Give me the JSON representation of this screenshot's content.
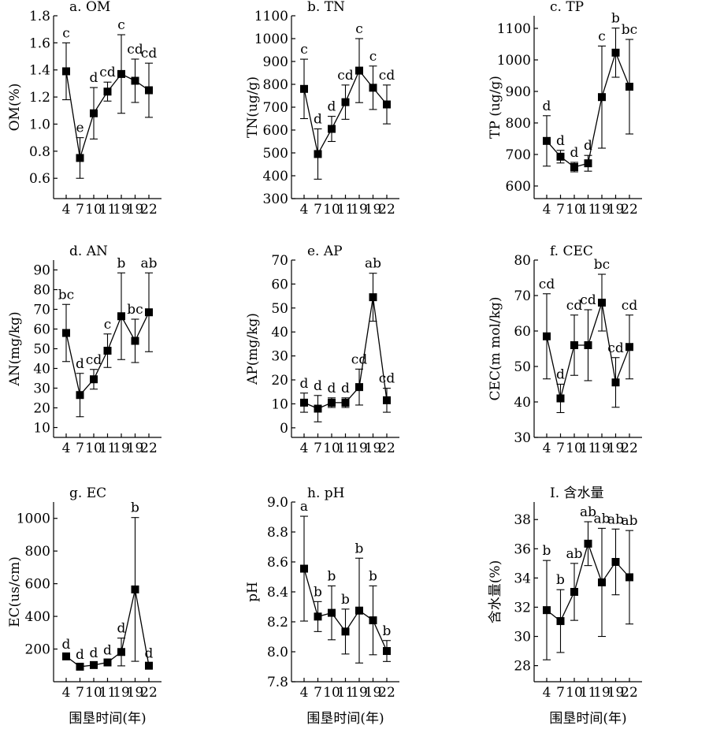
{
  "chart_data": [
    {
      "type": "line",
      "title": "a. OM",
      "ylabel": "OM(%)",
      "xlabel": "",
      "categories": [
        "4",
        "7",
        "10",
        "11",
        "19",
        "19",
        "22"
      ],
      "values": [
        1.39,
        0.75,
        1.08,
        1.24,
        1.37,
        1.32,
        1.25
      ],
      "errors": [
        0.21,
        0.15,
        0.19,
        0.07,
        0.29,
        0.16,
        0.2
      ],
      "sig": [
        "c",
        "e",
        "d",
        "cd",
        "c",
        "cd",
        "cd"
      ],
      "ylim": [
        0.45,
        1.8
      ],
      "yticks": [
        0.6,
        0.8,
        1.0,
        1.2,
        1.4,
        1.6,
        1.8
      ],
      "ytick_labels": [
        "0.6",
        "0.8",
        "1.0",
        "1.2",
        "1.4",
        "1.6",
        "1.8"
      ]
    },
    {
      "type": "line",
      "title": "b. TN",
      "ylabel": "TN(ug/g)",
      "xlabel": "",
      "categories": [
        "4",
        "7",
        "10",
        "11",
        "19",
        "19",
        "22"
      ],
      "values": [
        780,
        495,
        605,
        722,
        860,
        785,
        712
      ],
      "errors": [
        130,
        110,
        55,
        75,
        140,
        95,
        85
      ],
      "sig": [
        "c",
        "d",
        "d",
        "cd",
        "c",
        "c",
        "cd"
      ],
      "ylim": [
        300,
        1100
      ],
      "yticks": [
        300,
        400,
        500,
        600,
        700,
        800,
        900,
        1000,
        1100
      ],
      "ytick_labels": [
        "300",
        "400",
        "500",
        "600",
        "700",
        "800",
        "900",
        "1000",
        "1100"
      ]
    },
    {
      "type": "line",
      "title": "c. TP",
      "ylabel": "TP (ug/g)",
      "xlabel": "",
      "categories": [
        "4",
        "7",
        "10",
        "11",
        "19",
        "19",
        "22"
      ],
      "values": [
        743,
        693,
        660,
        672,
        882,
        1023,
        915
      ],
      "errors": [
        80,
        20,
        15,
        25,
        162,
        78,
        150
      ],
      "sig": [
        "d",
        "d",
        "d",
        "d",
        "c",
        "b",
        "bc"
      ],
      "ylim": [
        560,
        1140
      ],
      "yticks": [
        600,
        700,
        800,
        900,
        1000,
        1100
      ],
      "ytick_labels": [
        "600",
        "700",
        "800",
        "900",
        "1000",
        "1100"
      ]
    },
    {
      "type": "line",
      "title": "d. AN",
      "ylabel": "AN(mg/kg)",
      "xlabel": "",
      "categories": [
        "4",
        "7",
        "10",
        "11",
        "19",
        "19",
        "22"
      ],
      "values": [
        58,
        26.5,
        34.5,
        49,
        66.5,
        54,
        68.5
      ],
      "errors": [
        14.5,
        11,
        5,
        8.5,
        22,
        11,
        20
      ],
      "sig": [
        "bc",
        "d",
        "cd",
        "c",
        "b",
        "bc",
        "ab"
      ],
      "ylim": [
        5,
        95
      ],
      "yticks": [
        10,
        20,
        30,
        40,
        50,
        60,
        70,
        80,
        90
      ],
      "ytick_labels": [
        "10",
        "20",
        "30",
        "40",
        "50",
        "60",
        "70",
        "80",
        "90"
      ]
    },
    {
      "type": "line",
      "title": "e. AP",
      "ylabel": "AP(mg/kg)",
      "xlabel": "",
      "categories": [
        "4",
        "7",
        "10",
        "11",
        "19",
        "19",
        "22"
      ],
      "values": [
        10.5,
        8,
        10.5,
        10.5,
        17,
        54.5,
        11.5
      ],
      "errors": [
        4,
        5.5,
        2,
        2,
        7.5,
        10,
        5
      ],
      "sig": [
        "d",
        "d",
        "d",
        "d",
        "cd",
        "ab",
        "cd"
      ],
      "ylim": [
        -4,
        70
      ],
      "yticks": [
        0,
        10,
        20,
        30,
        40,
        50,
        60,
        70
      ],
      "ytick_labels": [
        "0",
        "10",
        "20",
        "30",
        "40",
        "50",
        "60",
        "70"
      ]
    },
    {
      "type": "line",
      "title": "f. CEC",
      "ylabel": "CEC(m mol/kg)",
      "xlabel": "",
      "categories": [
        "4",
        "7",
        "10",
        "11",
        "19",
        "19",
        "22"
      ],
      "values": [
        58.5,
        41,
        56,
        56,
        68,
        45.5,
        55.5
      ],
      "errors": [
        12,
        4,
        8.5,
        10,
        8,
        7,
        9
      ],
      "sig": [
        "cd",
        "d",
        "cd",
        "cd",
        "bc",
        "cd",
        "cd"
      ],
      "ylim": [
        30,
        80
      ],
      "yticks": [
        30,
        40,
        50,
        60,
        70,
        80
      ],
      "ytick_labels": [
        "30",
        "40",
        "50",
        "60",
        "70",
        "80"
      ]
    },
    {
      "type": "line",
      "title": "g. EC",
      "ylabel": "EC(us/cm)",
      "xlabel": "围垦时间(年)",
      "categories": [
        "4",
        "7",
        "10",
        "11",
        "19",
        "19",
        "22"
      ],
      "values": [
        155,
        92,
        102,
        118,
        182,
        565,
        98
      ],
      "errors": [
        0,
        0,
        0,
        0,
        85,
        440,
        0
      ],
      "sig": [
        "d",
        "d",
        "d",
        "d",
        "d",
        "b",
        "d"
      ],
      "ylim": [
        0,
        1100
      ],
      "yticks": [
        200,
        400,
        600,
        800,
        1000
      ],
      "ytick_labels": [
        "200",
        "400",
        "600",
        "800",
        "1000"
      ]
    },
    {
      "type": "line",
      "title": "h. pH",
      "ylabel": "pH",
      "xlabel": "围垦时间(年)",
      "categories": [
        "4",
        "7",
        "10",
        "11",
        "19",
        "19",
        "22"
      ],
      "values": [
        8.555,
        8.235,
        8.26,
        8.135,
        8.275,
        8.21,
        8.005
      ],
      "errors": [
        0.35,
        0.1,
        0.18,
        0.15,
        0.35,
        0.23,
        0.07
      ],
      "sig": [
        "a",
        "b",
        "b",
        "b",
        "b",
        "b",
        "b"
      ],
      "ylim": [
        7.8,
        9.0
      ],
      "yticks": [
        7.8,
        8.0,
        8.2,
        8.4,
        8.6,
        8.8,
        9.0
      ],
      "ytick_labels": [
        "7.8",
        "8.0",
        "8.2",
        "8.4",
        "8.6",
        "8.8",
        "9.0"
      ]
    },
    {
      "type": "line",
      "title": "I. 含水量",
      "ylabel": "含水量(%)",
      "xlabel": "围垦时间(年)",
      "categories": [
        "4",
        "7",
        "10",
        "11",
        "19",
        "19",
        "22"
      ],
      "values": [
        31.8,
        31.05,
        33.05,
        36.35,
        33.7,
        35.1,
        34.05
      ],
      "errors": [
        3.4,
        2.15,
        1.95,
        1.5,
        3.7,
        2.25,
        3.2
      ],
      "sig": [
        "b",
        "b",
        "ab",
        "ab",
        "ab",
        "ab",
        "ab"
      ],
      "ylim": [
        26.9,
        39.2
      ],
      "yticks": [
        28,
        30,
        32,
        34,
        36,
        38
      ],
      "ytick_labels": [
        "28",
        "30",
        "32",
        "34",
        "36",
        "38"
      ]
    }
  ]
}
